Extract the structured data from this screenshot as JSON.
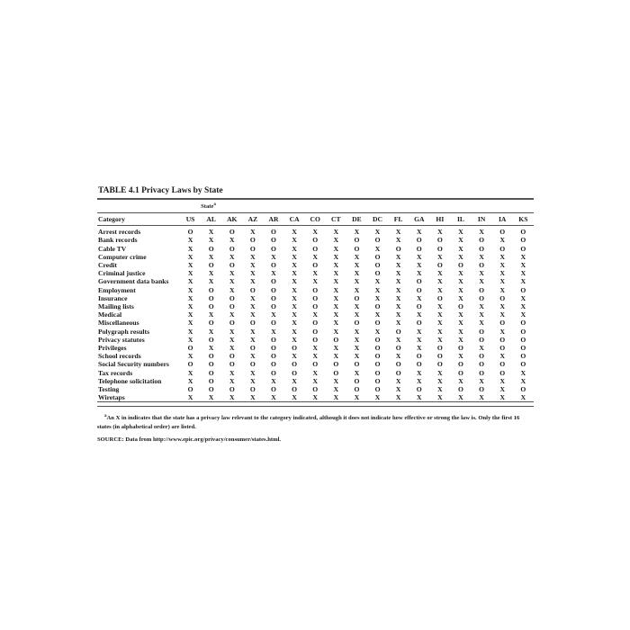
{
  "title": "TABLE 4.1  Privacy Laws by State",
  "group_header": "State",
  "group_header_note": "a",
  "category_header": "Category",
  "columns": [
    "US",
    "AL",
    "AK",
    "AZ",
    "AR",
    "CA",
    "CO",
    "CT",
    "DE",
    "DC",
    "FL",
    "GA",
    "HI",
    "IL",
    "IN",
    "IA",
    "KS"
  ],
  "rows": [
    {
      "category": "Arrest records",
      "values": [
        "O",
        "X",
        "O",
        "X",
        "O",
        "X",
        "X",
        "X",
        "X",
        "X",
        "X",
        "X",
        "X",
        "X",
        "X",
        "O",
        "O"
      ]
    },
    {
      "category": "Bank records",
      "values": [
        "X",
        "X",
        "X",
        "O",
        "O",
        "X",
        "O",
        "X",
        "O",
        "O",
        "X",
        "O",
        "O",
        "X",
        "O",
        "X",
        "O"
      ]
    },
    {
      "category": "Cable TV",
      "values": [
        "X",
        "O",
        "O",
        "O",
        "O",
        "X",
        "O",
        "X",
        "O",
        "X",
        "O",
        "O",
        "O",
        "X",
        "O",
        "O",
        "O"
      ]
    },
    {
      "category": "Computer crime",
      "values": [
        "X",
        "X",
        "X",
        "X",
        "X",
        "X",
        "X",
        "X",
        "X",
        "O",
        "X",
        "X",
        "X",
        "X",
        "X",
        "X",
        "X"
      ]
    },
    {
      "category": "Credit",
      "values": [
        "X",
        "O",
        "O",
        "X",
        "O",
        "X",
        "O",
        "X",
        "X",
        "O",
        "X",
        "X",
        "O",
        "O",
        "O",
        "X",
        "X"
      ]
    },
    {
      "category": "Criminal justice",
      "values": [
        "X",
        "X",
        "X",
        "X",
        "X",
        "X",
        "X",
        "X",
        "X",
        "O",
        "X",
        "X",
        "X",
        "X",
        "X",
        "X",
        "X"
      ]
    },
    {
      "category": "Government data banks",
      "values": [
        "X",
        "X",
        "X",
        "X",
        "O",
        "X",
        "X",
        "X",
        "X",
        "X",
        "X",
        "O",
        "X",
        "X",
        "X",
        "X",
        "X"
      ]
    },
    {
      "category": "Employment",
      "values": [
        "X",
        "O",
        "X",
        "O",
        "O",
        "X",
        "O",
        "X",
        "X",
        "X",
        "X",
        "O",
        "X",
        "X",
        "O",
        "X",
        "O"
      ]
    },
    {
      "category": "Insurance",
      "values": [
        "X",
        "O",
        "O",
        "X",
        "O",
        "X",
        "O",
        "X",
        "O",
        "X",
        "X",
        "X",
        "O",
        "X",
        "O",
        "O",
        "X"
      ]
    },
    {
      "category": "Mailing lists",
      "values": [
        "X",
        "O",
        "O",
        "X",
        "O",
        "X",
        "O",
        "X",
        "X",
        "O",
        "X",
        "O",
        "X",
        "O",
        "X",
        "X",
        "X"
      ]
    },
    {
      "category": "Medical",
      "values": [
        "X",
        "X",
        "X",
        "X",
        "X",
        "X",
        "X",
        "X",
        "X",
        "X",
        "X",
        "X",
        "X",
        "X",
        "X",
        "X",
        "X"
      ]
    },
    {
      "category": "Miscellaneous",
      "values": [
        "X",
        "O",
        "O",
        "O",
        "O",
        "X",
        "O",
        "X",
        "O",
        "O",
        "X",
        "O",
        "X",
        "X",
        "X",
        "O",
        "O"
      ]
    },
    {
      "category": "Polygraph results",
      "values": [
        "X",
        "X",
        "X",
        "X",
        "X",
        "X",
        "O",
        "X",
        "X",
        "X",
        "O",
        "X",
        "X",
        "X",
        "O",
        "X",
        "O"
      ]
    },
    {
      "category": "Privacy statutes",
      "values": [
        "X",
        "O",
        "X",
        "X",
        "O",
        "X",
        "O",
        "O",
        "X",
        "O",
        "X",
        "X",
        "X",
        "X",
        "O",
        "O",
        "O"
      ]
    },
    {
      "category": "Privileges",
      "values": [
        "O",
        "X",
        "X",
        "O",
        "O",
        "O",
        "X",
        "X",
        "X",
        "O",
        "O",
        "X",
        "O",
        "O",
        "X",
        "O",
        "O"
      ]
    },
    {
      "category": "School records",
      "values": [
        "X",
        "O",
        "O",
        "X",
        "O",
        "X",
        "X",
        "X",
        "X",
        "O",
        "X",
        "O",
        "O",
        "X",
        "O",
        "X",
        "O"
      ]
    },
    {
      "category": "Social Security numbers",
      "values": [
        "O",
        "O",
        "O",
        "O",
        "O",
        "O",
        "O",
        "O",
        "O",
        "O",
        "O",
        "O",
        "O",
        "O",
        "O",
        "O",
        "O"
      ]
    },
    {
      "category": "Tax records",
      "values": [
        "X",
        "O",
        "X",
        "X",
        "O",
        "O",
        "X",
        "O",
        "X",
        "O",
        "O",
        "X",
        "X",
        "O",
        "O",
        "O",
        "X"
      ]
    },
    {
      "category": "Telephone solicitation",
      "values": [
        "X",
        "O",
        "X",
        "X",
        "X",
        "X",
        "X",
        "X",
        "O",
        "O",
        "X",
        "X",
        "X",
        "X",
        "X",
        "X",
        "X"
      ]
    },
    {
      "category": "Testing",
      "values": [
        "O",
        "O",
        "O",
        "O",
        "O",
        "O",
        "O",
        "X",
        "O",
        "O",
        "X",
        "O",
        "X",
        "O",
        "O",
        "X",
        "O"
      ]
    },
    {
      "category": "Wiretaps",
      "values": [
        "X",
        "X",
        "X",
        "X",
        "X",
        "X",
        "X",
        "X",
        "X",
        "X",
        "X",
        "X",
        "X",
        "X",
        "X",
        "X",
        "X"
      ]
    }
  ],
  "footnote_mark": "a",
  "footnote": "An X in indicates that the state has a privacy law relevant to the category indicated, although it does not indicate how effective or strong the law is. Only the first 16 states (in alphabetical order) are listed.",
  "source": "SOURCE: Data from http://www.epic.org/privacy/consumer/states.html."
}
